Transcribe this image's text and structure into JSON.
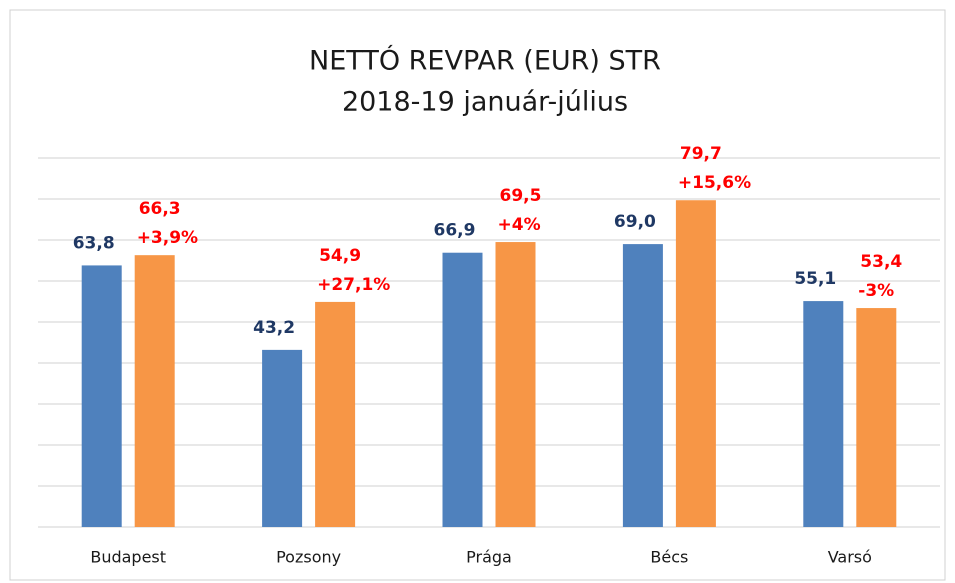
{
  "chart_data": {
    "type": "bar",
    "title": "NETTÓ REVPAR (EUR) STR",
    "subtitle": "2018-19 január-július",
    "categories": [
      "Budapest",
      "Pozsony",
      "Prága",
      "Bécs",
      "Varsó"
    ],
    "series": [
      {
        "color": "#4f81bd",
        "label_color": "#1f3864",
        "values": [
          63.8,
          43.2,
          66.9,
          69.0,
          55.1
        ],
        "value_labels": [
          "63,8",
          "43,2",
          "66,9",
          "69,0",
          "55,1"
        ]
      },
      {
        "color": "#f79646",
        "label_color": "#ff0000",
        "values": [
          66.3,
          54.9,
          69.5,
          79.7,
          53.4
        ],
        "value_labels": [
          "66,3",
          "54,9",
          "69,5",
          "79,7",
          "53,4"
        ],
        "change_labels": [
          "+3,9%",
          "+27,1%",
          "+4%",
          "+15,6%",
          "-3%"
        ]
      }
    ],
    "ylim": [
      0,
      90
    ],
    "yticks": [
      0,
      10,
      20,
      30,
      40,
      50,
      60,
      70,
      80,
      90
    ],
    "grid": true
  }
}
